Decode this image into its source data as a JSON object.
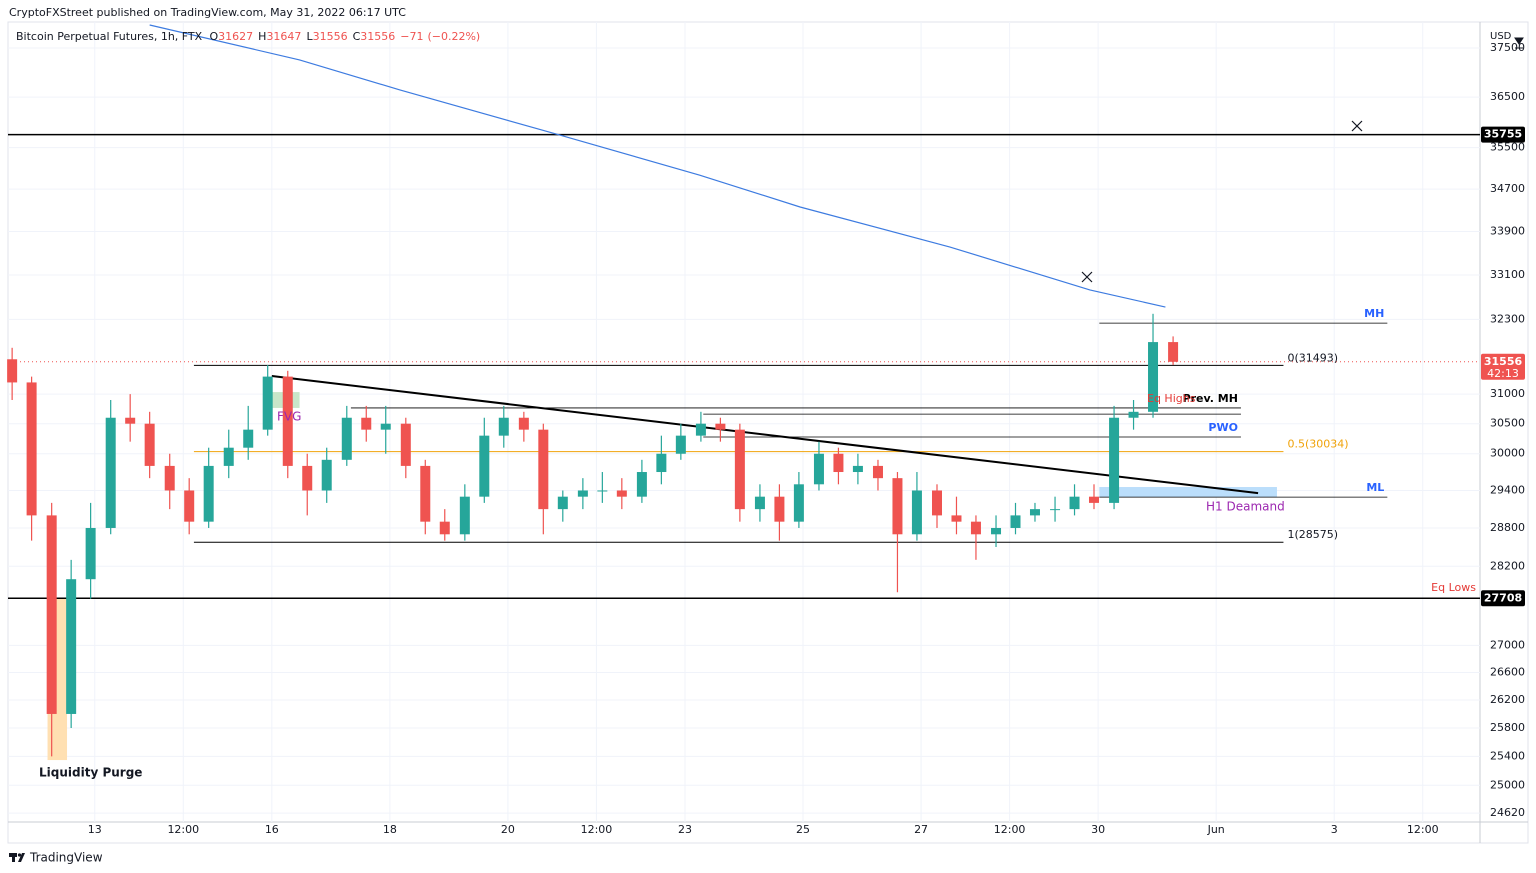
{
  "header": {
    "published": "CryptoFXStreet published on TradingView.com, May 31, 2022 06:17 UTC"
  },
  "footer": {
    "brand": "TradingView"
  },
  "chart_data": {
    "type": "candlestick",
    "symbol": "Bitcoin Perpetual Futures, 1h, FTX",
    "legend_fields": [
      {
        "key": "O",
        "value": 31627
      },
      {
        "key": "H",
        "value": 31647
      },
      {
        "key": "L",
        "value": 31556
      },
      {
        "key": "C",
        "value": 31556
      }
    ],
    "change": {
      "value": -71,
      "label": "−71"
    },
    "change_percent": {
      "value": -0.22,
      "label": "(−0.22%)"
    },
    "y_axis_label": "USD",
    "log_scale": true,
    "grid": true,
    "xlim": [
      11.53,
      36.47
    ],
    "ylim": [
      24500,
      38040
    ],
    "xticks": [
      13,
      {
        "value": 14.5,
        "label": "12:00"
      },
      16,
      18,
      20,
      {
        "value": 21.5,
        "label": "12:00"
      },
      23,
      25,
      27,
      {
        "value": 28.5,
        "label": "12:00"
      },
      30,
      {
        "value": 32,
        "label": "Jun"
      },
      {
        "value": 34,
        "label": "3"
      },
      {
        "value": 35.5,
        "label": "12:00"
      }
    ],
    "yticks": [
      37500,
      36500,
      35500,
      34700,
      33900,
      33100,
      32300,
      31000,
      30500,
      30000,
      29400,
      28800,
      28200,
      27000,
      26600,
      26200,
      25800,
      25400,
      25000,
      24620
    ],
    "up_color": "#26a69a",
    "down_color": "#ef5350",
    "candles": {
      "x": [
        11.6,
        11.93,
        12.27,
        12.6,
        12.93,
        13.27,
        13.6,
        13.93,
        14.27,
        14.6,
        14.93,
        15.27,
        15.6,
        15.93,
        16.27,
        16.6,
        16.93,
        17.27,
        17.6,
        17.93,
        18.27,
        18.6,
        18.93,
        19.27,
        19.6,
        19.93,
        20.27,
        20.6,
        20.93,
        21.27,
        21.6,
        21.93,
        22.27,
        22.6,
        22.93,
        23.27,
        23.6,
        23.93,
        24.27,
        24.6,
        24.93,
        25.27,
        25.6,
        25.93,
        26.27,
        26.6,
        26.93,
        27.27,
        27.6,
        27.93,
        28.27,
        28.6,
        28.93,
        29.27,
        29.6,
        29.93,
        30.27,
        30.6,
        30.93,
        31.27
      ],
      "open": [
        31600,
        31200,
        29000,
        26000,
        28000,
        28800,
        30600,
        30500,
        29800,
        29400,
        28900,
        29800,
        30100,
        30400,
        31300,
        29800,
        29400,
        29900,
        30600,
        30400,
        30500,
        29800,
        28900,
        28700,
        29300,
        30300,
        30600,
        30400,
        29100,
        29300,
        29400,
        29400,
        29300,
        29700,
        30000,
        30300,
        30500,
        30400,
        29100,
        29300,
        28900,
        29500,
        30000,
        29700,
        29800,
        29600,
        28700,
        29400,
        29000,
        28900,
        28700,
        28800,
        29000,
        29100,
        29100,
        29300,
        29200,
        30600,
        30700,
        31900
      ],
      "high": [
        31800,
        31300,
        29200,
        28300,
        29200,
        30900,
        31000,
        30700,
        30000,
        29600,
        30100,
        30400,
        30800,
        31500,
        31400,
        30000,
        30100,
        30800,
        30800,
        30800,
        30600,
        29900,
        29100,
        29500,
        30600,
        30800,
        30700,
        30500,
        29400,
        29600,
        29700,
        29600,
        29900,
        30300,
        30500,
        30700,
        30600,
        30500,
        29500,
        29500,
        29700,
        30200,
        30100,
        30000,
        29900,
        29700,
        29700,
        29500,
        29300,
        29000,
        29000,
        29200,
        29200,
        29300,
        29500,
        29500,
        30800,
        30900,
        32400,
        32000
      ],
      "low": [
        30900,
        28600,
        25400,
        25800,
        27700,
        28700,
        30200,
        29600,
        29100,
        28700,
        28800,
        29600,
        29900,
        30300,
        29600,
        29000,
        29200,
        29800,
        30200,
        30000,
        29600,
        28700,
        28600,
        28600,
        29200,
        30100,
        30200,
        28700,
        28900,
        29100,
        29200,
        29100,
        29200,
        29500,
        29900,
        30200,
        30200,
        28900,
        28900,
        28600,
        28800,
        29400,
        29500,
        29500,
        29400,
        27800,
        28600,
        28800,
        28700,
        28300,
        28500,
        28700,
        28900,
        28900,
        29000,
        29100,
        29100,
        30400,
        30600,
        31500
      ],
      "close": [
        31200,
        29000,
        26000,
        28000,
        28800,
        30600,
        30500,
        29800,
        29400,
        28900,
        29800,
        30100,
        30400,
        31300,
        29800,
        29400,
        29900,
        30600,
        30400,
        30500,
        29800,
        28900,
        28700,
        29300,
        30300,
        30600,
        30400,
        29100,
        29300,
        29400,
        29400,
        29300,
        29700,
        30000,
        30300,
        30500,
        30400,
        29100,
        29300,
        28900,
        29500,
        30000,
        29700,
        29800,
        29600,
        28700,
        29400,
        29000,
        28900,
        28700,
        28800,
        29000,
        29100,
        29100,
        29300,
        29200,
        30600,
        30700,
        31900,
        31556
      ]
    },
    "moving_average": {
      "color": "#3d7be0",
      "x": [
        13.93,
        16.47,
        18.17,
        20.88,
        23.25,
        24.95,
        27.49,
        29.86,
        31.14
      ],
      "values": [
        37977,
        37255,
        36645,
        35746,
        34967,
        34360,
        33612,
        32828,
        32521
      ]
    },
    "last_price": {
      "value": 31556,
      "countdown": "42:13",
      "color": "#ef5350"
    },
    "price_lines": [
      {
        "value": 35755,
        "color": "#000000"
      },
      {
        "value": 27708,
        "color": "#000000"
      }
    ],
    "fib_levels": [
      {
        "label": "0(31493)",
        "value": 31493,
        "x": [
          14.68,
          33.14
        ],
        "color": "#000000",
        "label_color": "#131722"
      },
      {
        "label": "0.5(30034)",
        "value": 30034,
        "x": [
          14.68,
          33.14
        ],
        "color": "#f0a30a",
        "label_color": "#f0a30a"
      },
      {
        "label": "1(28575)",
        "value": 28575,
        "x": [
          14.68,
          33.14
        ],
        "color": "#000000",
        "label_color": "#131722"
      }
    ],
    "range_levels": [
      {
        "label": "MH",
        "value": 32235,
        "x": [
          30.02,
          34.9
        ],
        "color": "#000000",
        "label_color": "#2962ff"
      },
      {
        "label": "Prev. MH",
        "value": 30765,
        "x": [
          17.34,
          32.42
        ],
        "color": "#000000",
        "label_color": "#000000"
      },
      {
        "value": 30661,
        "x": [
          23.31,
          32.42
        ],
        "color": "#000000"
      },
      {
        "label": "PWO",
        "value": 30278,
        "x": [
          23.31,
          32.42
        ],
        "color": "#000000",
        "label_color": "#2962ff"
      },
      {
        "label": "ML",
        "value": 29293,
        "x": [
          30.02,
          34.9
        ],
        "color": "#000000",
        "label_color": "#2962ff"
      }
    ],
    "zones": [
      {
        "x": [
          15.97,
          16.47
        ],
        "values": [
          30765,
          31035
        ],
        "color": "#c8e6c9"
      },
      {
        "x": [
          12.2,
          12.53
        ],
        "values": [
          25349,
          27712
        ],
        "color": "#ffe0b2"
      },
      {
        "x": [
          30.02,
          33.03
        ],
        "values": [
          29293,
          29456
        ],
        "color": "#bbdefb"
      }
    ],
    "trend_line": {
      "x": [
        16.0,
        32.71
      ],
      "values": [
        31310,
        29357
      ],
      "color": "#000000"
    },
    "annotations": {
      "fvg": "FVG",
      "eq_highs": "Eq Highs",
      "eq_lows": "Eq Lows",
      "h1_demand": "H1 Deamand",
      "liquidity_purge": "Liquidity Purge"
    }
  }
}
